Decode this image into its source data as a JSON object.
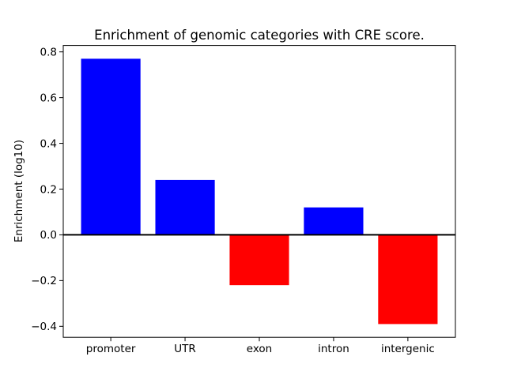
{
  "chart_data": {
    "type": "bar",
    "title": "Enrichment of genomic categories with CRE score.",
    "xlabel": "",
    "ylabel": "Enrichment (log10)",
    "categories": [
      "promoter",
      "UTR",
      "exon",
      "intron",
      "intergenic"
    ],
    "values": [
      0.77,
      0.24,
      -0.22,
      0.12,
      -0.39
    ],
    "positive_color": "#0000ff",
    "negative_color": "#ff0000",
    "bar_width": 0.8,
    "ylim": [
      -0.448,
      0.828
    ],
    "xlim": [
      -0.64,
      4.64
    ],
    "yticks": [
      -0.4,
      -0.2,
      0.0,
      0.2,
      0.4,
      0.6,
      0.8
    ],
    "grid": false,
    "zero_line": true,
    "legend": "none",
    "background_color": "#ffffff",
    "axes_color": "#000000"
  }
}
